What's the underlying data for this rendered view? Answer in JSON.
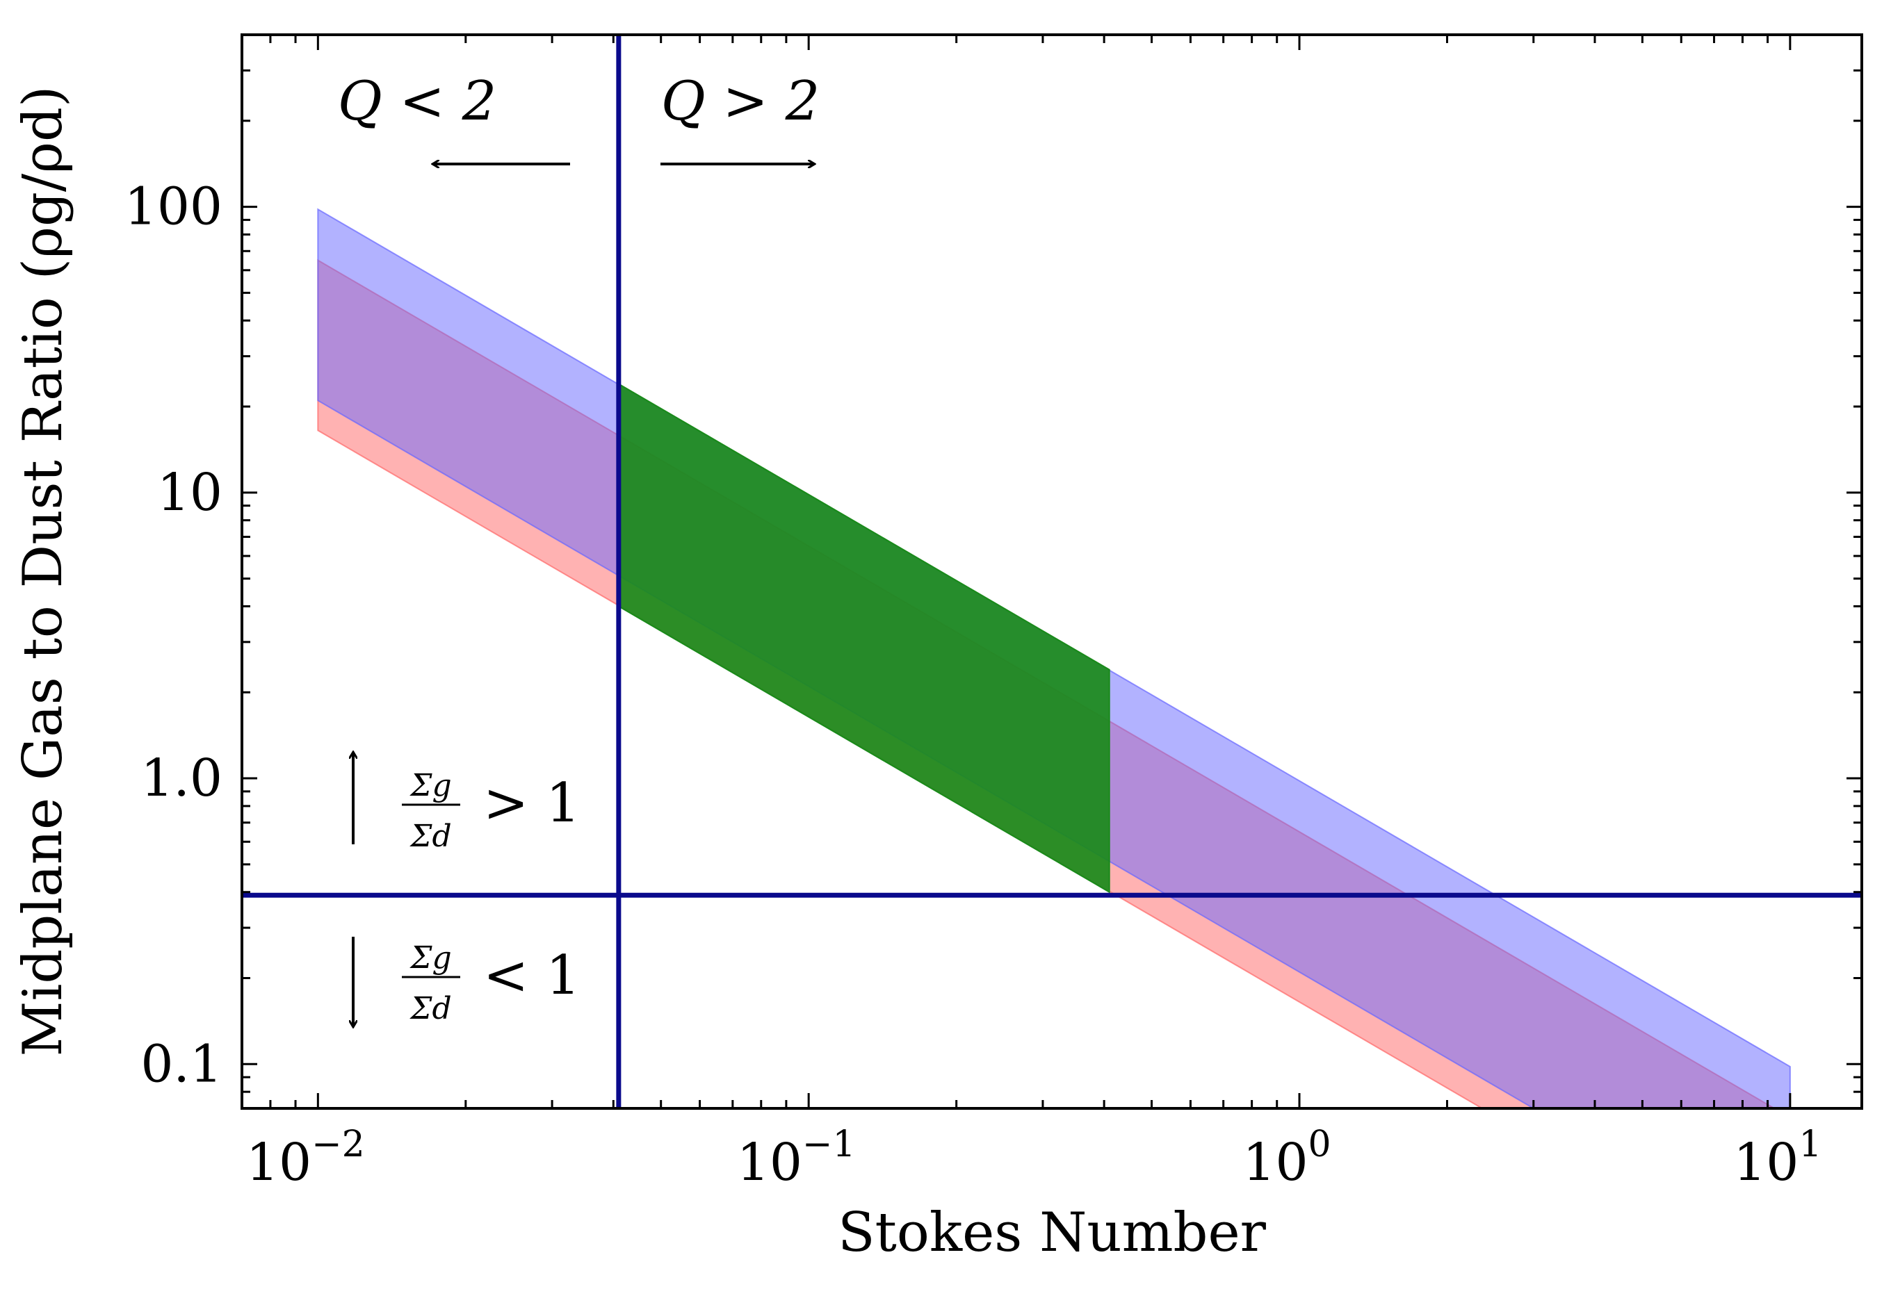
{
  "chart_data": {
    "type": "area",
    "xlabel": "Stokes Number",
    "ylabel": "Midplane Gas to Dust Ratio (ρg/ρd)",
    "xscale": "log",
    "yscale": "log",
    "xlim": [
      0.007,
      14
    ],
    "ylim": [
      0.07,
      400
    ],
    "x_ticks": [
      {
        "value": 0.01,
        "base": "10",
        "exp": "−2"
      },
      {
        "value": 0.1,
        "base": "10",
        "exp": "−1"
      },
      {
        "value": 1,
        "base": "10",
        "exp": "0"
      },
      {
        "value": 10,
        "base": "10",
        "exp": "1"
      }
    ],
    "y_ticks": [
      {
        "value": 0.1,
        "label": "0.1"
      },
      {
        "value": 1,
        "label": "1.0"
      },
      {
        "value": 10,
        "label": "10"
      },
      {
        "value": 100,
        "label": "100"
      }
    ],
    "series": [
      {
        "color": "#ff6666",
        "opacity": 0.5,
        "x": [
          0.01,
          10
        ],
        "upper": [
          65,
          0.065
        ],
        "lower": [
          16.5,
          0.0165
        ]
      },
      {
        "color": "#6666ff",
        "opacity": 0.5,
        "x": [
          0.01,
          10
        ],
        "upper": [
          98,
          0.098
        ],
        "lower": [
          21,
          0.021
        ]
      },
      {
        "color": "#1a8a1a",
        "opacity": 0.92,
        "x": [
          0.041,
          0.41
        ],
        "upper": [
          24,
          2.4
        ],
        "lower": [
          4.0,
          0.4
        ]
      }
    ],
    "reference_lines": [
      {
        "orientation": "vertical",
        "x": 0.041,
        "color": "#0a0a8c"
      },
      {
        "orientation": "horizontal",
        "y": 0.39,
        "color": "#0a0a8c"
      }
    ],
    "annotations": {
      "q_left": "Q < 2",
      "q_right": "Q > 2",
      "sigma_num": "Σg",
      "sigma_den": "Σd",
      "sigma_upper_rel": "> 1",
      "sigma_lower_rel": "< 1"
    },
    "grid": false,
    "legend": "none"
  }
}
